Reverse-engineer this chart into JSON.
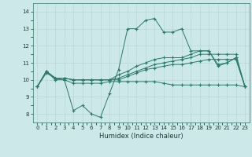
{
  "title": "",
  "xlabel": "Humidex (Indice chaleur)",
  "x": [
    0,
    1,
    2,
    3,
    4,
    5,
    6,
    7,
    8,
    9,
    10,
    11,
    12,
    13,
    14,
    15,
    16,
    17,
    18,
    19,
    20,
    21,
    22,
    23
  ],
  "series": [
    [
      9.6,
      10.5,
      10.0,
      10.0,
      8.2,
      8.5,
      8.0,
      7.8,
      9.2,
      10.6,
      13.0,
      13.0,
      13.5,
      13.6,
      12.8,
      12.8,
      13.0,
      11.7,
      11.7,
      11.7,
      10.9,
      11.0,
      11.3,
      9.6
    ],
    [
      9.6,
      10.5,
      10.1,
      10.1,
      10.0,
      10.0,
      10.0,
      10.0,
      10.0,
      10.3,
      10.5,
      10.8,
      11.0,
      11.2,
      11.3,
      11.3,
      11.3,
      11.5,
      11.7,
      11.7,
      10.8,
      11.0,
      11.3,
      9.6
    ],
    [
      9.6,
      10.5,
      10.1,
      10.1,
      10.0,
      10.0,
      10.0,
      10.0,
      10.0,
      10.1,
      10.3,
      10.5,
      10.7,
      10.9,
      11.0,
      11.1,
      11.2,
      11.3,
      11.5,
      11.5,
      11.5,
      11.5,
      11.5,
      9.6
    ],
    [
      9.6,
      10.5,
      10.1,
      10.1,
      10.0,
      10.0,
      10.0,
      10.0,
      10.0,
      10.0,
      10.2,
      10.4,
      10.6,
      10.7,
      10.8,
      10.9,
      10.9,
      11.0,
      11.1,
      11.2,
      11.2,
      11.2,
      11.2,
      9.6
    ],
    [
      9.6,
      10.4,
      10.1,
      10.0,
      9.8,
      9.8,
      9.8,
      9.8,
      9.9,
      9.9,
      9.9,
      9.9,
      9.9,
      9.9,
      9.8,
      9.7,
      9.7,
      9.7,
      9.7,
      9.7,
      9.7,
      9.7,
      9.7,
      9.6
    ]
  ],
  "line_color": "#2a7a6a",
  "bg_color": "#cce8e8",
  "grid_major_color": "#b8d8d8",
  "grid_minor_color": "#d4ecec",
  "xlim": [
    -0.5,
    23.5
  ],
  "ylim": [
    7.5,
    14.5
  ],
  "yticks": [
    8,
    9,
    10,
    11,
    12,
    13,
    14
  ],
  "xticks": [
    0,
    1,
    2,
    3,
    4,
    5,
    6,
    7,
    8,
    9,
    10,
    11,
    12,
    13,
    14,
    15,
    16,
    17,
    18,
    19,
    20,
    21,
    22,
    23
  ],
  "figsize": [
    3.2,
    2.0
  ],
  "dpi": 100
}
